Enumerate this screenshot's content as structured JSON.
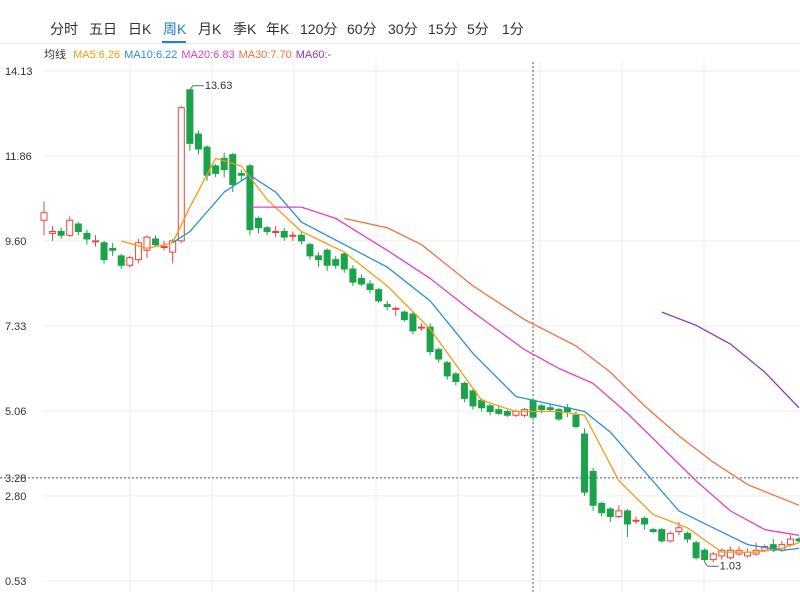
{
  "tabs": [
    {
      "label": "分时",
      "active": false
    },
    {
      "label": "五日",
      "active": false
    },
    {
      "label": "日K",
      "active": false
    },
    {
      "label": "周K",
      "active": true
    },
    {
      "label": "月K",
      "active": false
    },
    {
      "label": "季K",
      "active": false
    },
    {
      "label": "年K",
      "active": false
    },
    {
      "label": "120分",
      "active": false
    },
    {
      "label": "60分",
      "active": false
    },
    {
      "label": "30分",
      "active": false
    },
    {
      "label": "15分",
      "active": false
    },
    {
      "label": "5分",
      "active": false
    },
    {
      "label": "1分",
      "active": false
    }
  ],
  "ma_legend": {
    "label": "均线",
    "items": [
      {
        "text": "MA5:6.26",
        "color": "#f39c12"
      },
      {
        "text": "MA10:6.22",
        "color": "#2d8fd5"
      },
      {
        "text": "MA20:6.83",
        "color": "#e040c8"
      },
      {
        "text": "MA30:7.70",
        "color": "#f07040"
      },
      {
        "text": "MA60:-",
        "color": "#8a3ab9"
      }
    ]
  },
  "colors": {
    "up": "#e8443a",
    "down": "#1aa34a",
    "accent": "#1f7de2",
    "grid": "#eeeeee"
  },
  "chart_data": {
    "type": "candlestick",
    "period": "weekly",
    "y_ticks": [
      "14.13",
      "11.86",
      "9.60",
      "7.33",
      "5.06",
      "3.28",
      "2.80",
      "0.53"
    ],
    "ylim": [
      0.53,
      14.13
    ],
    "crosshair_price": "3.28",
    "max_label": "13.63",
    "min_label": "1.03",
    "candles": [
      [
        10.15,
        10.35,
        9.75,
        10.65
      ],
      [
        9.8,
        9.85,
        9.6,
        10.0
      ],
      [
        9.85,
        9.75,
        9.65,
        9.95
      ],
      [
        9.75,
        10.15,
        9.7,
        10.25
      ],
      [
        10.05,
        9.85,
        9.75,
        10.1
      ],
      [
        9.8,
        9.65,
        9.5,
        9.9
      ],
      [
        9.6,
        9.6,
        9.45,
        9.75
      ],
      [
        9.55,
        9.1,
        9.0,
        9.6
      ],
      [
        9.4,
        9.35,
        9.2,
        9.55
      ],
      [
        9.2,
        8.95,
        8.85,
        9.25
      ],
      [
        8.95,
        9.15,
        8.9,
        9.2
      ],
      [
        9.1,
        9.55,
        9.0,
        9.65
      ],
      [
        9.35,
        9.7,
        9.15,
        9.75
      ],
      [
        9.65,
        9.5,
        9.45,
        9.75
      ],
      [
        9.45,
        9.45,
        9.35,
        9.6
      ],
      [
        9.3,
        9.6,
        9.0,
        9.65
      ],
      [
        9.6,
        13.15,
        9.55,
        13.2
      ],
      [
        13.63,
        12.2,
        12.0,
        13.63
      ],
      [
        12.45,
        12.05,
        11.9,
        12.55
      ],
      [
        12.1,
        11.35,
        11.2,
        12.15
      ],
      [
        11.6,
        11.4,
        11.3,
        11.65
      ],
      [
        11.8,
        11.5,
        11.3,
        11.95
      ],
      [
        11.9,
        11.1,
        10.9,
        11.95
      ],
      [
        11.4,
        11.35,
        11.2,
        11.5
      ],
      [
        11.6,
        9.9,
        9.75,
        11.65
      ],
      [
        10.2,
        9.95,
        9.8,
        10.25
      ],
      [
        9.95,
        9.85,
        9.75,
        10.0
      ],
      [
        9.85,
        9.85,
        9.7,
        10.0
      ],
      [
        9.85,
        9.7,
        9.6,
        9.95
      ],
      [
        9.75,
        9.75,
        9.6,
        9.85
      ],
      [
        9.75,
        9.6,
        9.5,
        9.85
      ],
      [
        9.5,
        9.2,
        9.1,
        9.55
      ],
      [
        9.2,
        9.1,
        8.9,
        9.3
      ],
      [
        9.35,
        8.95,
        8.8,
        9.4
      ],
      [
        9.1,
        8.95,
        8.85,
        9.2
      ],
      [
        9.25,
        8.85,
        8.75,
        9.3
      ],
      [
        8.85,
        8.5,
        8.4,
        8.95
      ],
      [
        8.6,
        8.45,
        8.4,
        8.7
      ],
      [
        8.45,
        8.3,
        8.2,
        8.55
      ],
      [
        8.3,
        8.0,
        7.95,
        8.35
      ],
      [
        7.9,
        7.85,
        7.75,
        8.0
      ],
      [
        7.8,
        7.8,
        7.6,
        7.85
      ],
      [
        7.7,
        7.5,
        7.45,
        7.75
      ],
      [
        7.65,
        7.2,
        7.1,
        7.7
      ],
      [
        7.3,
        7.3,
        7.2,
        7.4
      ],
      [
        7.3,
        6.65,
        6.55,
        7.4
      ],
      [
        6.7,
        6.45,
        6.35,
        6.75
      ],
      [
        6.35,
        6.0,
        5.9,
        6.4
      ],
      [
        6.05,
        5.85,
        5.75,
        6.1
      ],
      [
        5.8,
        5.4,
        5.3,
        5.85
      ],
      [
        5.6,
        5.2,
        5.1,
        5.65
      ],
      [
        5.35,
        5.15,
        5.05,
        5.4
      ],
      [
        5.2,
        5.05,
        4.95,
        5.25
      ],
      [
        5.1,
        5.0,
        4.95,
        5.2
      ],
      [
        5.05,
        4.95,
        4.9,
        5.1
      ],
      [
        4.95,
        5.05,
        4.9,
        5.1
      ],
      [
        4.95,
        5.1,
        4.9,
        5.15
      ],
      [
        5.35,
        4.9,
        4.8,
        5.4
      ],
      [
        5.2,
        5.1,
        5.0,
        5.25
      ],
      [
        5.15,
        5.1,
        5.05,
        5.25
      ],
      [
        5.1,
        4.85,
        4.8,
        5.15
      ],
      [
        5.15,
        5.05,
        4.9,
        5.25
      ],
      [
        4.95,
        4.65,
        4.6,
        5.05
      ],
      [
        4.45,
        2.9,
        2.8,
        4.6
      ],
      [
        3.45,
        2.55,
        2.4,
        3.55
      ],
      [
        2.6,
        2.35,
        2.25,
        2.65
      ],
      [
        2.45,
        2.25,
        2.1,
        2.5
      ],
      [
        2.25,
        2.4,
        2.2,
        2.55
      ],
      [
        2.4,
        2.05,
        1.7,
        2.45
      ],
      [
        2.15,
        2.15,
        2.05,
        2.25
      ],
      [
        2.2,
        2.05,
        1.9,
        2.25
      ],
      [
        1.9,
        1.85,
        1.8,
        1.95
      ],
      [
        1.9,
        1.6,
        1.55,
        1.95
      ],
      [
        1.6,
        1.8,
        1.55,
        1.85
      ],
      [
        1.85,
        1.95,
        1.75,
        2.1
      ],
      [
        1.8,
        1.65,
        1.55,
        1.85
      ],
      [
        1.55,
        1.15,
        1.1,
        1.6
      ],
      [
        1.35,
        1.1,
        1.03,
        1.4
      ],
      [
        1.1,
        1.25,
        1.03,
        1.3
      ],
      [
        1.2,
        1.35,
        1.1,
        1.4
      ],
      [
        1.15,
        1.35,
        1.1,
        1.45
      ],
      [
        1.25,
        1.35,
        1.2,
        1.45
      ],
      [
        1.2,
        1.3,
        1.15,
        1.4
      ],
      [
        1.25,
        1.35,
        1.2,
        1.55
      ],
      [
        1.35,
        1.45,
        1.3,
        1.5
      ],
      [
        1.5,
        1.35,
        1.3,
        1.65
      ],
      [
        1.35,
        1.5,
        1.3,
        1.6
      ],
      [
        1.5,
        1.65,
        1.45,
        1.75
      ],
      [
        1.65,
        1.6,
        1.55,
        1.7
      ]
    ],
    "ma_series": [
      {
        "name": "MA5",
        "points": [
          [
            9,
            9.6
          ],
          [
            12,
            9.4
          ],
          [
            15,
            9.55
          ],
          [
            17,
            10.5
          ],
          [
            20,
            11.8
          ],
          [
            23,
            11.6
          ],
          [
            26,
            10.7
          ],
          [
            30,
            9.85
          ],
          [
            35,
            9.3
          ],
          [
            40,
            8.4
          ],
          [
            45,
            7.25
          ],
          [
            48,
            6.3
          ],
          [
            51,
            5.35
          ],
          [
            55,
            5.05
          ],
          [
            60,
            5.05
          ],
          [
            63,
            4.95
          ],
          [
            67,
            3.2
          ],
          [
            71,
            2.3
          ],
          [
            75,
            1.95
          ],
          [
            79,
            1.3
          ],
          [
            83,
            1.3
          ],
          [
            86,
            1.4
          ],
          [
            88,
            1.55
          ]
        ]
      },
      {
        "name": "MA10",
        "points": [
          [
            15,
            9.55
          ],
          [
            17,
            9.85
          ],
          [
            21,
            10.9
          ],
          [
            24,
            11.35
          ],
          [
            27,
            10.9
          ],
          [
            30,
            10.1
          ],
          [
            35,
            9.5
          ],
          [
            40,
            8.9
          ],
          [
            45,
            8.0
          ],
          [
            50,
            6.6
          ],
          [
            55,
            5.45
          ],
          [
            60,
            5.2
          ],
          [
            63,
            5.05
          ],
          [
            66,
            4.5
          ],
          [
            70,
            3.45
          ],
          [
            74,
            2.4
          ],
          [
            78,
            1.95
          ],
          [
            82,
            1.5
          ],
          [
            86,
            1.35
          ],
          [
            88,
            1.4
          ]
        ]
      },
      {
        "name": "MA20",
        "points": [
          [
            24,
            10.5
          ],
          [
            30,
            10.5
          ],
          [
            34,
            10.2
          ],
          [
            40,
            9.35
          ],
          [
            45,
            8.6
          ],
          [
            50,
            7.7
          ],
          [
            56,
            6.7
          ],
          [
            60,
            6.2
          ],
          [
            64,
            5.8
          ],
          [
            68,
            5.0
          ],
          [
            72,
            4.1
          ],
          [
            76,
            3.2
          ],
          [
            80,
            2.4
          ],
          [
            84,
            1.9
          ],
          [
            88,
            1.75
          ]
        ]
      },
      {
        "name": "MA30",
        "points": [
          [
            35,
            10.2
          ],
          [
            40,
            9.95
          ],
          [
            44,
            9.5
          ],
          [
            50,
            8.4
          ],
          [
            56,
            7.5
          ],
          [
            62,
            6.8
          ],
          [
            66,
            6.1
          ],
          [
            70,
            5.2
          ],
          [
            74,
            4.4
          ],
          [
            78,
            3.7
          ],
          [
            82,
            3.1
          ],
          [
            88,
            2.55
          ]
        ]
      },
      {
        "name": "MA60",
        "points": [
          [
            72,
            7.7
          ],
          [
            76,
            7.35
          ],
          [
            80,
            6.85
          ],
          [
            84,
            6.1
          ],
          [
            88,
            5.15
          ]
        ]
      }
    ]
  }
}
